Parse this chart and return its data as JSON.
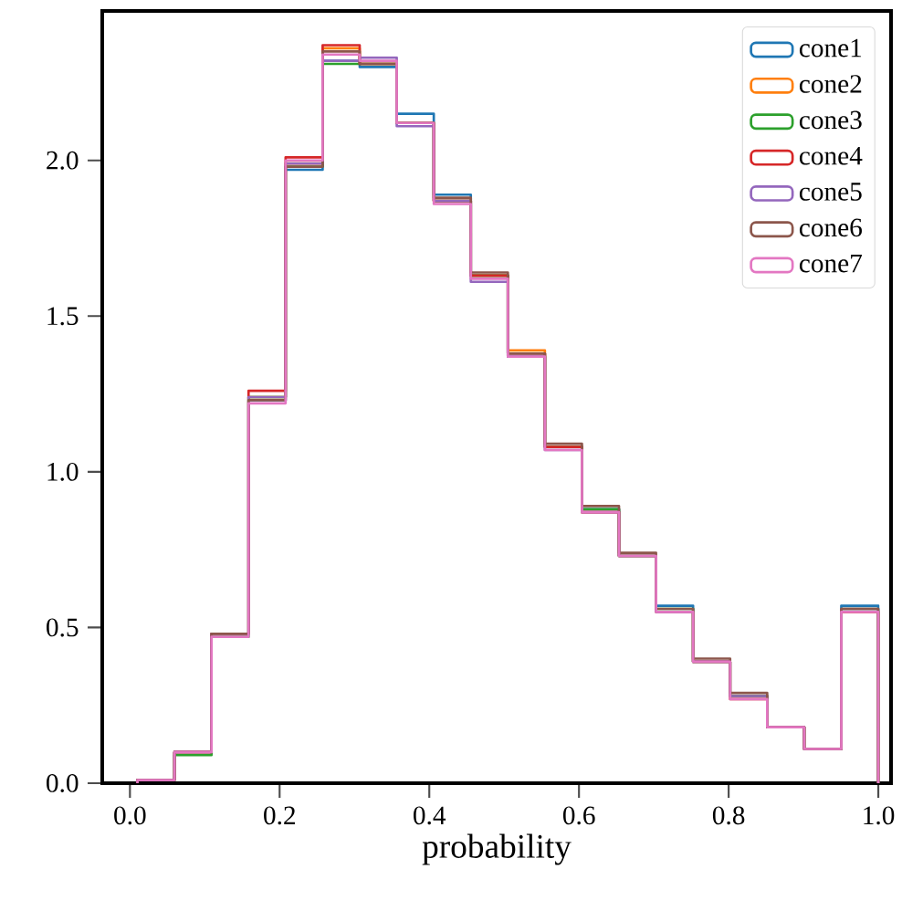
{
  "chart_data": {
    "type": "histogram",
    "xlabel": "probability",
    "bins": [
      0.01,
      0.0595,
      0.109,
      0.1585,
      0.208,
      0.2575,
      0.307,
      0.3565,
      0.406,
      0.4555,
      0.505,
      0.5545,
      0.604,
      0.6535,
      0.703,
      0.7525,
      0.802,
      0.8515,
      0.901,
      0.9505,
      1.0
    ],
    "series": [
      {
        "name": "cone1",
        "color": "#1f77b4",
        "values": [
          0.01,
          0.1,
          0.48,
          1.23,
          1.97,
          2.32,
          2.3,
          2.15,
          1.89,
          1.63,
          1.38,
          1.08,
          0.88,
          0.73,
          0.57,
          0.39,
          0.28,
          0.18,
          0.11,
          0.57
        ]
      },
      {
        "name": "cone2",
        "color": "#ff7f0e",
        "values": [
          0.01,
          0.1,
          0.48,
          1.24,
          1.99,
          2.36,
          2.31,
          2.12,
          1.87,
          1.63,
          1.39,
          1.08,
          0.87,
          0.73,
          0.55,
          0.39,
          0.28,
          0.18,
          0.11,
          0.55
        ]
      },
      {
        "name": "cone3",
        "color": "#2ca02c",
        "values": [
          0.01,
          0.09,
          0.47,
          1.24,
          1.98,
          2.31,
          2.31,
          2.12,
          1.87,
          1.63,
          1.37,
          1.08,
          0.88,
          0.73,
          0.56,
          0.39,
          0.28,
          0.18,
          0.11,
          0.56
        ]
      },
      {
        "name": "cone4",
        "color": "#d62728",
        "values": [
          0.01,
          0.1,
          0.48,
          1.26,
          2.01,
          2.37,
          2.31,
          2.12,
          1.87,
          1.63,
          1.38,
          1.08,
          0.87,
          0.73,
          0.55,
          0.39,
          0.27,
          0.18,
          0.11,
          0.55
        ]
      },
      {
        "name": "cone5",
        "color": "#9467bd",
        "values": [
          0.01,
          0.1,
          0.48,
          1.24,
          1.99,
          2.32,
          2.33,
          2.11,
          1.87,
          1.61,
          1.37,
          1.07,
          0.87,
          0.73,
          0.55,
          0.39,
          0.28,
          0.18,
          0.11,
          0.56
        ]
      },
      {
        "name": "cone6",
        "color": "#8c564b",
        "values": [
          0.01,
          0.1,
          0.48,
          1.23,
          1.98,
          2.35,
          2.31,
          2.12,
          1.88,
          1.64,
          1.38,
          1.09,
          0.89,
          0.74,
          0.56,
          0.4,
          0.29,
          0.18,
          0.11,
          0.56
        ]
      },
      {
        "name": "cone7",
        "color": "#e377c2",
        "values": [
          0.01,
          0.1,
          0.47,
          1.22,
          2.0,
          2.34,
          2.32,
          2.12,
          1.86,
          1.62,
          1.37,
          1.07,
          0.87,
          0.73,
          0.55,
          0.39,
          0.27,
          0.18,
          0.11,
          0.55
        ]
      }
    ],
    "xlim": [
      -0.037,
      1.017
    ],
    "ylim": [
      0,
      2.48
    ],
    "xticks": [
      {
        "value": 0,
        "label": "0.0"
      },
      {
        "value": 0.2,
        "label": "0.2"
      },
      {
        "value": 0.4,
        "label": "0.4"
      },
      {
        "value": 0.6,
        "label": "0.6"
      },
      {
        "value": 0.8,
        "label": "0.8"
      },
      {
        "value": 1.0,
        "label": "1.0"
      }
    ],
    "yticks": [
      {
        "value": 0,
        "label": "0.0"
      },
      {
        "value": 0.5,
        "label": "0.5"
      },
      {
        "value": 1.0,
        "label": "1.0"
      },
      {
        "value": 1.5,
        "label": "1.5"
      },
      {
        "value": 2.0,
        "label": "2.0"
      }
    ],
    "legend": "top right"
  }
}
